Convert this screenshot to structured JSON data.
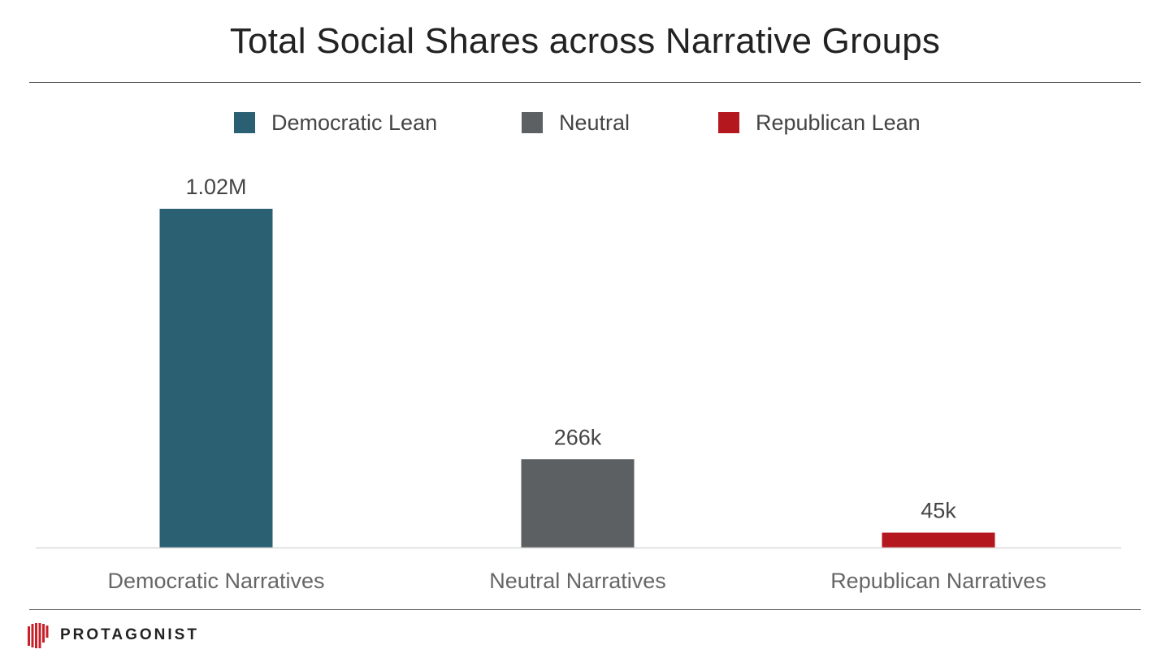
{
  "chart_data": {
    "type": "bar",
    "title": "Total Social Shares across Narrative Groups",
    "categories": [
      "Democratic Narratives",
      "Neutral Narratives",
      "Republican Narratives"
    ],
    "values": [
      1020000,
      266000,
      45000
    ],
    "data_labels": [
      "1.02M",
      "266k",
      "45k"
    ],
    "colors": [
      "#2b6073",
      "#5c6063",
      "#b5171f"
    ],
    "legend": [
      {
        "label": "Democratic Lean",
        "color": "#2b6073"
      },
      {
        "label": "Neutral",
        "color": "#5c6063"
      },
      {
        "label": "Republican Lean",
        "color": "#b5171f"
      }
    ],
    "legend_position": "top-center",
    "xlabel": "",
    "ylabel": "",
    "ylim": [
      0,
      1020000
    ],
    "grid": false
  },
  "brand": {
    "name": "PROTAGONIST",
    "accent": "#c8202a"
  }
}
